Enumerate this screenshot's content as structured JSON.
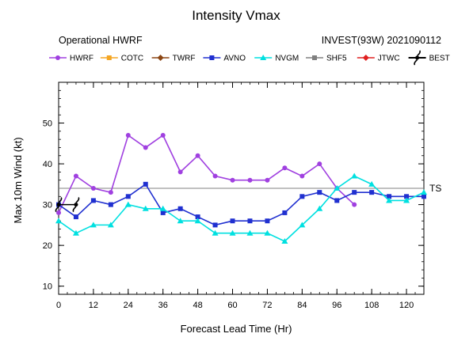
{
  "chart_data": {
    "type": "line",
    "title": "Intensity Vmax",
    "subtitle_left": "Operational HWRF",
    "subtitle_right": "INVEST(93W) 2021090112",
    "xlabel": "Forecast Lead Time (Hr)",
    "ylabel": "Max 10m Wind (kt)",
    "xlim": [
      0,
      126
    ],
    "ylim": [
      8,
      60
    ],
    "xticks": [
      0,
      12,
      24,
      36,
      48,
      60,
      72,
      84,
      96,
      108,
      120
    ],
    "xtick_labels": [
      "0",
      "12",
      "24",
      "36",
      "48",
      "60",
      "72",
      "84",
      "96",
      "108",
      "120"
    ],
    "yticks": [
      10,
      20,
      30,
      40,
      50
    ],
    "ytick_labels": [
      "10",
      "20",
      "30",
      "40",
      "50"
    ],
    "grid": false,
    "legend_position": "top",
    "reference_line": {
      "label": "TS",
      "y": 34,
      "color": "#808080"
    },
    "series": [
      {
        "name": "HWRF",
        "color": "#a040e0",
        "marker": "circle",
        "x": [
          0,
          6,
          12,
          18,
          24,
          30,
          36,
          42,
          48,
          54,
          60,
          66,
          72,
          78,
          84,
          90,
          96,
          102
        ],
        "y": [
          28,
          37,
          34,
          33,
          47,
          44,
          47,
          38,
          42,
          37,
          36,
          36,
          36,
          39,
          37,
          40,
          34,
          30
        ]
      },
      {
        "name": "COTC",
        "color": "#f5a623",
        "marker": "square",
        "x": [],
        "y": []
      },
      {
        "name": "TWRF",
        "color": "#8b4513",
        "marker": "diamond",
        "x": [],
        "y": []
      },
      {
        "name": "AVNO",
        "color": "#2030d0",
        "marker": "square",
        "x": [
          0,
          6,
          12,
          18,
          24,
          30,
          36,
          42,
          48,
          54,
          60,
          66,
          72,
          78,
          84,
          90,
          96,
          102,
          108,
          114,
          120,
          126
        ],
        "y": [
          30,
          27,
          31,
          30,
          32,
          35,
          28,
          29,
          27,
          25,
          26,
          26,
          26,
          28,
          32,
          33,
          31,
          33,
          33,
          32,
          32,
          32
        ]
      },
      {
        "name": "NVGM",
        "color": "#00e0e0",
        "marker": "triangle",
        "x": [
          0,
          6,
          12,
          18,
          24,
          30,
          36,
          42,
          48,
          54,
          60,
          66,
          72,
          78,
          84,
          90,
          96,
          102,
          108,
          114,
          120,
          126
        ],
        "y": [
          26,
          23,
          25,
          25,
          30,
          29,
          29,
          26,
          26,
          23,
          23,
          23,
          23,
          21,
          25,
          29,
          34,
          37,
          35,
          31,
          31,
          33
        ]
      },
      {
        "name": "SHF5",
        "color": "#808080",
        "marker": "square",
        "x": [],
        "y": []
      },
      {
        "name": "JTWC",
        "color": "#e02020",
        "marker": "diamond",
        "x": [],
        "y": []
      },
      {
        "name": "BEST",
        "color": "#000000",
        "marker": "typhoon",
        "x": [
          0,
          6
        ],
        "y": [
          30,
          30
        ]
      }
    ]
  }
}
